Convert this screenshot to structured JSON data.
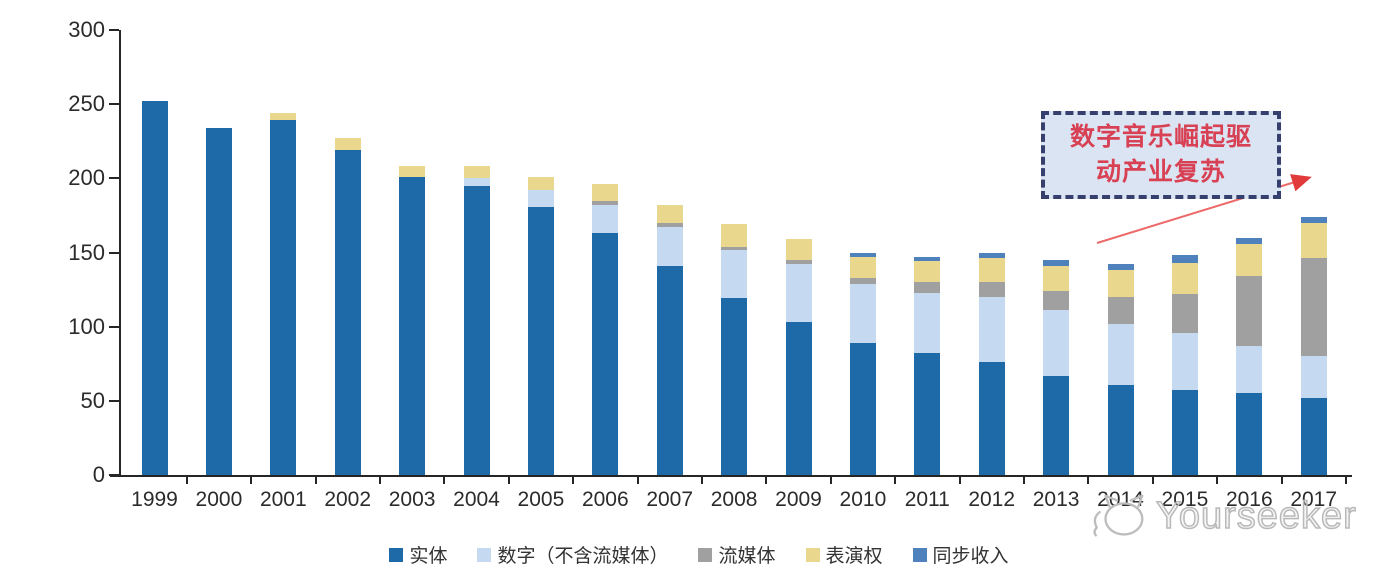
{
  "annotation": {
    "line1": "数字音乐崛起驱",
    "line2": "动产业复苏",
    "full_text": "数字音乐崛起驱动产业复苏",
    "text_color": "#d84054",
    "box_fill": "#dbe4f3",
    "box_border": "#35406e",
    "arrow_color": "#e85555"
  },
  "watermark": {
    "text": "Yourseeker"
  },
  "palette": {
    "physical": "#1e69a7",
    "digital": "#c5d9f0",
    "streaming": "#a0a0a0",
    "performance": "#e9d78e",
    "sync": "#4f81bd",
    "axis": "#262626"
  },
  "chart_data": {
    "type": "bar",
    "stacked": true,
    "title": "",
    "xlabel": "",
    "ylabel": "",
    "grid": false,
    "legend_position": "bottom",
    "ylim": [
      0,
      300
    ],
    "yticks": [
      0,
      50,
      100,
      150,
      200,
      250,
      300
    ],
    "categories": [
      "1999",
      "2000",
      "2001",
      "2002",
      "2003",
      "2004",
      "2005",
      "2006",
      "2007",
      "2008",
      "2009",
      "2010",
      "2011",
      "2012",
      "2013",
      "2014",
      "2015",
      "2016",
      "2017"
    ],
    "series": [
      {
        "name": "实体",
        "color": "#1e69a7",
        "values": [
          252,
          234,
          239,
          219,
          201,
          195,
          181,
          163,
          141,
          119,
          103,
          89,
          82,
          76,
          67,
          61,
          57,
          55,
          52
        ]
      },
      {
        "name": "数字（不含流媒体）",
        "color": "#c5d9f0",
        "values": [
          0,
          0,
          0,
          0,
          0,
          5,
          11,
          19,
          26,
          33,
          39,
          40,
          41,
          44,
          44,
          41,
          39,
          32,
          28
        ]
      },
      {
        "name": "流媒体",
        "color": "#a0a0a0",
        "values": [
          0,
          0,
          0,
          0,
          0,
          0,
          0,
          3,
          3,
          2,
          3,
          4,
          7,
          10,
          13,
          18,
          26,
          47,
          66
        ]
      },
      {
        "name": "表演权",
        "color": "#e9d78e",
        "values": [
          0,
          0,
          5,
          8,
          7,
          8,
          9,
          11,
          12,
          15,
          14,
          14,
          14,
          16,
          17,
          18,
          21,
          22,
          24
        ]
      },
      {
        "name": "同步收入",
        "color": "#4f81bd",
        "values": [
          0,
          0,
          0,
          0,
          0,
          0,
          0,
          0,
          0,
          0,
          0,
          3,
          3,
          4,
          4,
          4,
          5,
          4,
          4
        ]
      }
    ]
  }
}
